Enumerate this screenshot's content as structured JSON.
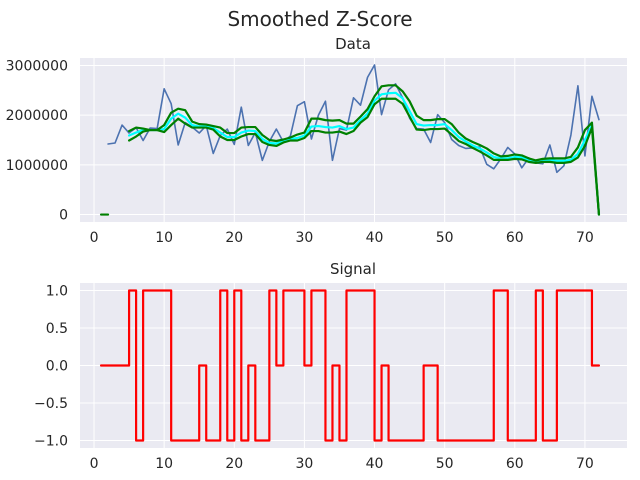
{
  "title": "Smoothed Z-Score",
  "chart_data": [
    {
      "type": "line",
      "title": "Data",
      "xlabel": "",
      "ylabel": "",
      "xlim": [
        -2,
        76
      ],
      "ylim": [
        -150000,
        3150000
      ],
      "xticks": [
        0,
        10,
        20,
        30,
        40,
        50,
        60,
        70
      ],
      "yticks": [
        0,
        1000000,
        2000000,
        3000000
      ],
      "grid": true,
      "series": [
        {
          "color": "#4c72b0",
          "x": [
            2,
            3,
            4,
            5,
            6,
            7,
            8,
            9,
            10,
            11,
            12,
            13,
            14,
            15,
            16,
            17,
            18,
            19,
            20,
            21,
            22,
            23,
            24,
            25,
            26,
            27,
            28,
            29,
            30,
            31,
            32,
            33,
            34,
            35,
            36,
            37,
            38,
            39,
            40,
            41,
            42,
            43,
            44,
            45,
            46,
            47,
            48,
            49,
            50,
            51,
            52,
            53,
            54,
            55,
            56,
            57,
            58,
            59,
            60,
            61,
            62,
            63,
            64,
            65,
            66,
            67,
            68,
            69,
            70,
            71,
            72
          ],
          "y": [
            1420000,
            1440000,
            1800000,
            1640000,
            1750000,
            1490000,
            1740000,
            1730000,
            2530000,
            2230000,
            1400000,
            1850000,
            1760000,
            1640000,
            1790000,
            1230000,
            1590000,
            1720000,
            1410000,
            2160000,
            1390000,
            1650000,
            1090000,
            1470000,
            1720000,
            1460000,
            1580000,
            2190000,
            2270000,
            1520000,
            2000000,
            2280000,
            1090000,
            1730000,
            1700000,
            2350000,
            2200000,
            2760000,
            3010000,
            2010000,
            2510000,
            2630000,
            2350000,
            1940000,
            1730000,
            1720000,
            1450000,
            2010000,
            1850000,
            1510000,
            1390000,
            1330000,
            1340000,
            1360000,
            1010000,
            920000,
            1120000,
            1350000,
            1220000,
            940000,
            1140000,
            1040000,
            1020000,
            1400000,
            850000,
            980000,
            1600000,
            2590000,
            1180000,
            2380000,
            1910000
          ]
        },
        {
          "color": "#00ffff",
          "x": [
            5,
            6,
            7,
            8,
            9,
            10,
            11,
            12,
            13,
            14,
            15,
            16,
            17,
            18,
            19,
            20,
            21,
            22,
            23,
            24,
            25,
            26,
            27,
            28,
            29,
            30,
            31,
            32,
            33,
            34,
            35,
            36,
            37,
            38,
            39,
            40,
            41,
            42,
            43,
            44,
            45,
            46,
            47,
            48,
            49,
            50,
            51,
            52,
            53,
            54,
            55,
            56,
            57,
            58,
            59,
            60,
            61,
            62,
            63,
            64,
            65,
            66,
            67,
            68,
            69,
            70,
            71,
            72
          ],
          "y": [
            1590000,
            1650000,
            1700000,
            1700000,
            1700000,
            1720000,
            1930000,
            2030000,
            1950000,
            1800000,
            1770000,
            1780000,
            1740000,
            1650000,
            1560000,
            1560000,
            1650000,
            1690000,
            1680000,
            1520000,
            1440000,
            1430000,
            1480000,
            1520000,
            1540000,
            1590000,
            1770000,
            1780000,
            1760000,
            1750000,
            1780000,
            1720000,
            1750000,
            1900000,
            2030000,
            2290000,
            2420000,
            2440000,
            2450000,
            2340000,
            2080000,
            1820000,
            1790000,
            1800000,
            1800000,
            1820000,
            1700000,
            1560000,
            1470000,
            1390000,
            1330000,
            1250000,
            1160000,
            1130000,
            1130000,
            1160000,
            1150000,
            1090000,
            1060000,
            1080000,
            1090000,
            1080000,
            1080000,
            1100000,
            1220000,
            1500000,
            1800000,
            0
          ]
        },
        {
          "color": "#008000",
          "x": [
            5,
            6,
            7,
            8,
            9,
            10,
            11,
            12,
            13,
            14,
            15,
            16,
            17,
            18,
            19,
            20,
            21,
            22,
            23,
            24,
            25,
            26,
            27,
            28,
            29,
            30,
            31,
            32,
            33,
            34,
            35,
            36,
            37,
            38,
            39,
            40,
            41,
            42,
            43,
            44,
            45,
            46,
            47,
            48,
            49,
            50,
            51,
            52,
            53,
            54,
            55,
            56,
            57,
            58,
            59,
            60,
            61,
            62,
            63,
            64,
            65,
            66,
            67,
            68,
            69,
            70,
            71,
            72
          ],
          "y": [
            1680000,
            1750000,
            1730000,
            1700000,
            1700000,
            1800000,
            2050000,
            2130000,
            2100000,
            1870000,
            1820000,
            1810000,
            1780000,
            1750000,
            1640000,
            1640000,
            1750000,
            1760000,
            1760000,
            1600000,
            1500000,
            1480000,
            1510000,
            1550000,
            1610000,
            1650000,
            1930000,
            1930000,
            1900000,
            1890000,
            1900000,
            1830000,
            1830000,
            1970000,
            2120000,
            2380000,
            2580000,
            2600000,
            2600000,
            2480000,
            2280000,
            1990000,
            1900000,
            1900000,
            1920000,
            1920000,
            1820000,
            1650000,
            1530000,
            1460000,
            1400000,
            1330000,
            1230000,
            1170000,
            1180000,
            1210000,
            1190000,
            1130000,
            1090000,
            1120000,
            1130000,
            1130000,
            1130000,
            1160000,
            1350000,
            1700000,
            1850000,
            0
          ]
        },
        {
          "color": "#008000",
          "x": [
            5,
            6,
            7,
            8,
            9,
            10,
            11,
            12,
            13,
            14,
            15,
            16,
            17,
            18,
            19,
            20,
            21,
            22,
            23,
            24,
            25,
            26,
            27,
            28,
            29,
            30,
            31,
            32,
            33,
            34,
            35,
            36,
            37,
            38,
            39,
            40,
            41,
            42,
            43,
            44,
            45,
            46,
            47,
            48,
            49,
            50,
            51,
            52,
            53,
            54,
            55,
            56,
            57,
            58,
            59,
            60,
            61,
            62,
            63,
            64,
            65,
            66,
            67,
            68,
            69,
            70,
            71,
            72
          ],
          "y": [
            1490000,
            1570000,
            1670000,
            1700000,
            1700000,
            1660000,
            1800000,
            1930000,
            1830000,
            1750000,
            1750000,
            1750000,
            1710000,
            1570000,
            1500000,
            1500000,
            1570000,
            1620000,
            1620000,
            1460000,
            1400000,
            1380000,
            1450000,
            1490000,
            1490000,
            1540000,
            1680000,
            1680000,
            1650000,
            1650000,
            1670000,
            1620000,
            1680000,
            1850000,
            1960000,
            2220000,
            2330000,
            2330000,
            2330000,
            2230000,
            1970000,
            1710000,
            1700000,
            1720000,
            1720000,
            1730000,
            1610000,
            1480000,
            1420000,
            1340000,
            1270000,
            1190000,
            1100000,
            1100000,
            1100000,
            1120000,
            1110000,
            1060000,
            1040000,
            1060000,
            1060000,
            1040000,
            1040000,
            1060000,
            1150000,
            1380000,
            1750000,
            0
          ]
        },
        {
          "color": "#008000",
          "x": [
            1,
            2
          ],
          "y": [
            0,
            0
          ]
        }
      ]
    },
    {
      "type": "line",
      "title": "Signal",
      "xlabel": "",
      "ylabel": "",
      "xlim": [
        -2,
        76
      ],
      "ylim": [
        -1.1,
        1.1
      ],
      "xticks": [
        0,
        10,
        20,
        30,
        40,
        50,
        60,
        70
      ],
      "yticks": [
        -1.0,
        -0.5,
        0.0,
        0.5,
        1.0
      ],
      "grid": true,
      "series": [
        {
          "color": "#ff0000",
          "step": "post",
          "x": [
            1,
            5,
            6,
            7,
            11,
            15,
            16,
            18,
            19,
            20,
            21,
            22,
            23,
            25,
            26,
            27,
            28,
            30,
            31,
            33,
            34,
            35,
            36,
            40,
            41,
            42,
            47,
            49,
            57,
            59,
            63,
            64,
            66,
            71,
            72
          ],
          "y": [
            0,
            1,
            -1,
            1,
            -1,
            0,
            -1,
            1,
            -1,
            1,
            -1,
            0,
            -1,
            1,
            0,
            1,
            1,
            0,
            1,
            -1,
            0,
            -1,
            1,
            -1,
            0,
            -1,
            0,
            -1,
            1,
            -1,
            1,
            -1,
            1,
            0,
            0
          ]
        }
      ]
    }
  ]
}
